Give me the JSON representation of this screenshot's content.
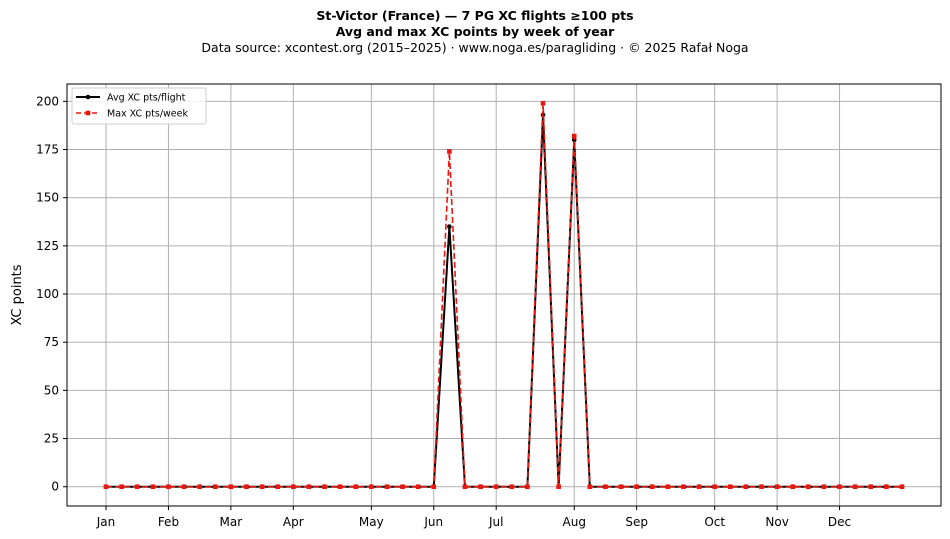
{
  "chart_data": {
    "type": "line",
    "title": "St-Victor (France)  —  7 PG XC flights ≥100 pts",
    "subtitle": "Avg and max XC points by week of year",
    "source_note": "Data source: xcontest.org (2015–2025)  ·  www.noga.es/paragliding  ·  © 2025 Rafał Noga",
    "xlabel": "",
    "ylabel": "XC points",
    "ylim": [
      -10,
      209
    ],
    "xlim": [
      -2.5,
      53.5
    ],
    "yticks": [
      0,
      25,
      50,
      75,
      100,
      125,
      150,
      175,
      200
    ],
    "xticks": [
      {
        "week": 0,
        "label": "Jan"
      },
      {
        "week": 4,
        "label": "Feb"
      },
      {
        "week": 8,
        "label": "Mar"
      },
      {
        "week": 12,
        "label": "Apr"
      },
      {
        "week": 17,
        "label": "May"
      },
      {
        "week": 21,
        "label": "Jun"
      },
      {
        "week": 25,
        "label": "Jul"
      },
      {
        "week": 30,
        "label": "Aug"
      },
      {
        "week": 34,
        "label": "Sep"
      },
      {
        "week": 39,
        "label": "Oct"
      },
      {
        "week": 43,
        "label": "Nov"
      },
      {
        "week": 47,
        "label": "Dec"
      }
    ],
    "grid": true,
    "legend_position": "top-left",
    "x": [
      0,
      1,
      2,
      3,
      4,
      5,
      6,
      7,
      8,
      9,
      10,
      11,
      12,
      13,
      14,
      15,
      16,
      17,
      18,
      19,
      20,
      21,
      22,
      23,
      24,
      25,
      26,
      27,
      28,
      29,
      30,
      31,
      32,
      33,
      34,
      35,
      36,
      37,
      38,
      39,
      40,
      41,
      42,
      43,
      44,
      45,
      46,
      47,
      48,
      49,
      50,
      51
    ],
    "series": [
      {
        "name": "Avg XC pts/flight",
        "color": "#000000",
        "style": "solid",
        "marker": "circle",
        "values": [
          0,
          0,
          0,
          0,
          0,
          0,
          0,
          0,
          0,
          0,
          0,
          0,
          0,
          0,
          0,
          0,
          0,
          0,
          0,
          0,
          0,
          0,
          135,
          0,
          0,
          0,
          0,
          0,
          193,
          0,
          180,
          0,
          0,
          0,
          0,
          0,
          0,
          0,
          0,
          0,
          0,
          0,
          0,
          0,
          0,
          0,
          0,
          0,
          0,
          0,
          0,
          0
        ]
      },
      {
        "name": "Max XC pts/week",
        "color": "#e8180f",
        "style": "dashed",
        "marker": "square",
        "values": [
          0,
          0,
          0,
          0,
          0,
          0,
          0,
          0,
          0,
          0,
          0,
          0,
          0,
          0,
          0,
          0,
          0,
          0,
          0,
          0,
          0,
          0,
          174,
          0,
          0,
          0,
          0,
          0,
          199,
          0,
          182,
          0,
          0,
          0,
          0,
          0,
          0,
          0,
          0,
          0,
          0,
          0,
          0,
          0,
          0,
          0,
          0,
          0,
          0,
          0,
          0,
          0
        ]
      }
    ]
  }
}
